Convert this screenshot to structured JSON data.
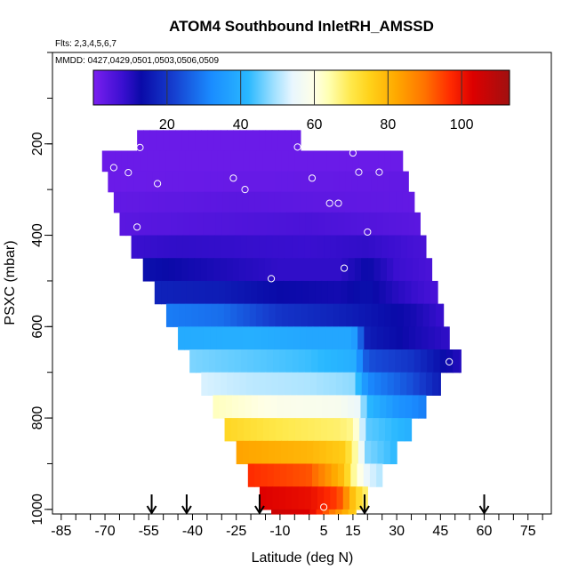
{
  "chart_data": {
    "type": "heatmap",
    "title": "ATOM4 Southbound InletRH_AMSSD",
    "flights_note": "Flts: 2,3,4,5,6,7",
    "dates_note": "MMDD: 0427,0429,0501,0503,0506,0509",
    "xlabel": "Latitude (deg N)",
    "ylabel": "PSXC (mbar)",
    "xlim": [
      -88,
      83
    ],
    "ylim": [
      1010,
      0
    ],
    "x_ticks": [
      -85,
      -70,
      -55,
      -40,
      -25,
      -10,
      5,
      15,
      30,
      45,
      60,
      75
    ],
    "y_ticks": [
      200,
      400,
      600,
      800,
      1000
    ],
    "colorbar": {
      "range": [
        0,
        113
      ],
      "ticks": [
        20,
        40,
        60,
        80,
        100
      ],
      "stops": [
        {
          "v": 0,
          "c": "#7a1ff0"
        },
        {
          "v": 8,
          "c": "#3a0fd0"
        },
        {
          "v": 13,
          "c": "#0a0aa8"
        },
        {
          "v": 22,
          "c": "#1640d0"
        },
        {
          "v": 32,
          "c": "#1a8cff"
        },
        {
          "v": 42,
          "c": "#29b8ff"
        },
        {
          "v": 49,
          "c": "#9fe0ff"
        },
        {
          "v": 54,
          "c": "#e8f6ff"
        },
        {
          "v": 60,
          "c": "#ffffe6"
        },
        {
          "v": 64,
          "c": "#ffffb0"
        },
        {
          "v": 70,
          "c": "#ffe84a"
        },
        {
          "v": 75,
          "c": "#ffd21a"
        },
        {
          "v": 82,
          "c": "#ffaa00"
        },
        {
          "v": 90,
          "c": "#ff7300"
        },
        {
          "v": 97,
          "c": "#ff2a00"
        },
        {
          "v": 103,
          "c": "#dd0000"
        },
        {
          "v": 113,
          "c": "#a01010"
        }
      ]
    },
    "rh_layers": [
      {
        "p_top": 170,
        "p_bot": 215,
        "x_min": -59,
        "x_max": -3,
        "profile": [
          [
            -59,
            2
          ],
          [
            -3,
            2
          ]
        ]
      },
      {
        "p_top": 215,
        "p_bot": 260,
        "x_min": -71,
        "x_max": 32,
        "profile": [
          [
            -71,
            2
          ],
          [
            32,
            2
          ]
        ]
      },
      {
        "p_top": 260,
        "p_bot": 305,
        "x_min": -69,
        "x_max": 34,
        "profile": [
          [
            -69,
            2
          ],
          [
            34,
            3
          ]
        ]
      },
      {
        "p_top": 305,
        "p_bot": 350,
        "x_min": -67,
        "x_max": 36,
        "profile": [
          [
            -67,
            3
          ],
          [
            -25,
            4
          ],
          [
            36,
            3
          ]
        ]
      },
      {
        "p_top": 350,
        "p_bot": 400,
        "x_min": -65,
        "x_max": 38,
        "profile": [
          [
            -65,
            4
          ],
          [
            -35,
            5
          ],
          [
            0,
            6
          ],
          [
            20,
            5
          ],
          [
            38,
            4
          ]
        ]
      },
      {
        "p_top": 400,
        "p_bot": 450,
        "x_min": -61,
        "x_max": 40,
        "profile": [
          [
            -61,
            8
          ],
          [
            -45,
            9
          ],
          [
            0,
            8
          ],
          [
            20,
            9
          ],
          [
            40,
            6
          ]
        ]
      },
      {
        "p_top": 450,
        "p_bot": 500,
        "x_min": -57,
        "x_max": 42,
        "profile": [
          [
            -57,
            14
          ],
          [
            -40,
            12
          ],
          [
            -10,
            9
          ],
          [
            10,
            9
          ],
          [
            20,
            13
          ],
          [
            30,
            8
          ],
          [
            42,
            6
          ]
        ]
      },
      {
        "p_top": 500,
        "p_bot": 550,
        "x_min": -53,
        "x_max": 44,
        "profile": [
          [
            -53,
            17
          ],
          [
            -30,
            16
          ],
          [
            -10,
            13
          ],
          [
            10,
            12
          ],
          [
            20,
            14
          ],
          [
            30,
            10
          ],
          [
            44,
            6
          ]
        ]
      },
      {
        "p_top": 550,
        "p_bot": 600,
        "x_min": -49,
        "x_max": 46,
        "profile": [
          [
            -49,
            30
          ],
          [
            -30,
            28
          ],
          [
            -10,
            20
          ],
          [
            10,
            17
          ],
          [
            20,
            15
          ],
          [
            35,
            12
          ],
          [
            46,
            8
          ]
        ]
      },
      {
        "p_top": 600,
        "p_bot": 650,
        "x_min": -45,
        "x_max": 48,
        "profile": [
          [
            -45,
            39
          ],
          [
            -20,
            40
          ],
          [
            0,
            38
          ],
          [
            15,
            38
          ],
          [
            20,
            16
          ],
          [
            35,
            12
          ],
          [
            48,
            9
          ]
        ]
      },
      {
        "p_top": 650,
        "p_bot": 700,
        "x_min": -41,
        "x_max": 52,
        "profile": [
          [
            -41,
            47
          ],
          [
            -20,
            45
          ],
          [
            0,
            43
          ],
          [
            15,
            40
          ],
          [
            20,
            24
          ],
          [
            35,
            20
          ],
          [
            45,
            14
          ],
          [
            52,
            10
          ]
        ]
      },
      {
        "p_top": 700,
        "p_bot": 750,
        "x_min": -37,
        "x_max": 45,
        "profile": [
          [
            -37,
            53
          ],
          [
            -20,
            51
          ],
          [
            0,
            50
          ],
          [
            15,
            48
          ],
          [
            20,
            32
          ],
          [
            35,
            24
          ],
          [
            45,
            16
          ]
        ]
      },
      {
        "p_top": 750,
        "p_bot": 800,
        "x_min": -33,
        "x_max": 40,
        "profile": [
          [
            -33,
            63
          ],
          [
            -10,
            59
          ],
          [
            10,
            58
          ],
          [
            17,
            55
          ],
          [
            20,
            42
          ],
          [
            30,
            34
          ],
          [
            40,
            30
          ]
        ]
      },
      {
        "p_top": 800,
        "p_bot": 850,
        "x_min": -29,
        "x_max": 35,
        "profile": [
          [
            -29,
            74
          ],
          [
            -10,
            70
          ],
          [
            10,
            68
          ],
          [
            15,
            66
          ],
          [
            20,
            45
          ],
          [
            30,
            42
          ],
          [
            35,
            40
          ]
        ]
      },
      {
        "p_top": 850,
        "p_bot": 900,
        "x_min": -25,
        "x_max": 30,
        "profile": [
          [
            -25,
            83
          ],
          [
            0,
            80
          ],
          [
            12,
            76
          ],
          [
            15,
            68
          ],
          [
            20,
            47
          ],
          [
            30,
            42
          ]
        ]
      },
      {
        "p_top": 900,
        "p_bot": 950,
        "x_min": -21,
        "x_max": 25,
        "profile": [
          [
            -21,
            97
          ],
          [
            0,
            93
          ],
          [
            12,
            78
          ],
          [
            15,
            66
          ],
          [
            20,
            54
          ],
          [
            25,
            50
          ]
        ]
      },
      {
        "p_top": 950,
        "p_bot": 1000,
        "x_min": -17,
        "x_max": 20,
        "profile": [
          [
            -17,
            103
          ],
          [
            0,
            101
          ],
          [
            10,
            95
          ],
          [
            15,
            78
          ],
          [
            20,
            66
          ]
        ]
      },
      {
        "p_top": 1000,
        "p_bot": 1010,
        "x_min": -13,
        "x_max": 16,
        "profile": [
          [
            -13,
            106
          ],
          [
            0,
            103
          ],
          [
            10,
            85
          ],
          [
            16,
            75
          ]
        ]
      }
    ],
    "markers": [
      [
        -58,
        208
      ],
      [
        -67,
        252
      ],
      [
        -62,
        263
      ],
      [
        -52,
        287
      ],
      [
        -26,
        275
      ],
      [
        -22,
        300
      ],
      [
        -4,
        207
      ],
      [
        1,
        275
      ],
      [
        7,
        330
      ],
      [
        10,
        330
      ],
      [
        15,
        220
      ],
      [
        17,
        262
      ],
      [
        20,
        393
      ],
      [
        24,
        262
      ],
      [
        -59,
        382
      ],
      [
        12,
        472
      ],
      [
        -13,
        495
      ],
      [
        48,
        677
      ],
      [
        5,
        995
      ]
    ],
    "arrows_x": [
      -54,
      -42,
      -17,
      19,
      60
    ]
  }
}
